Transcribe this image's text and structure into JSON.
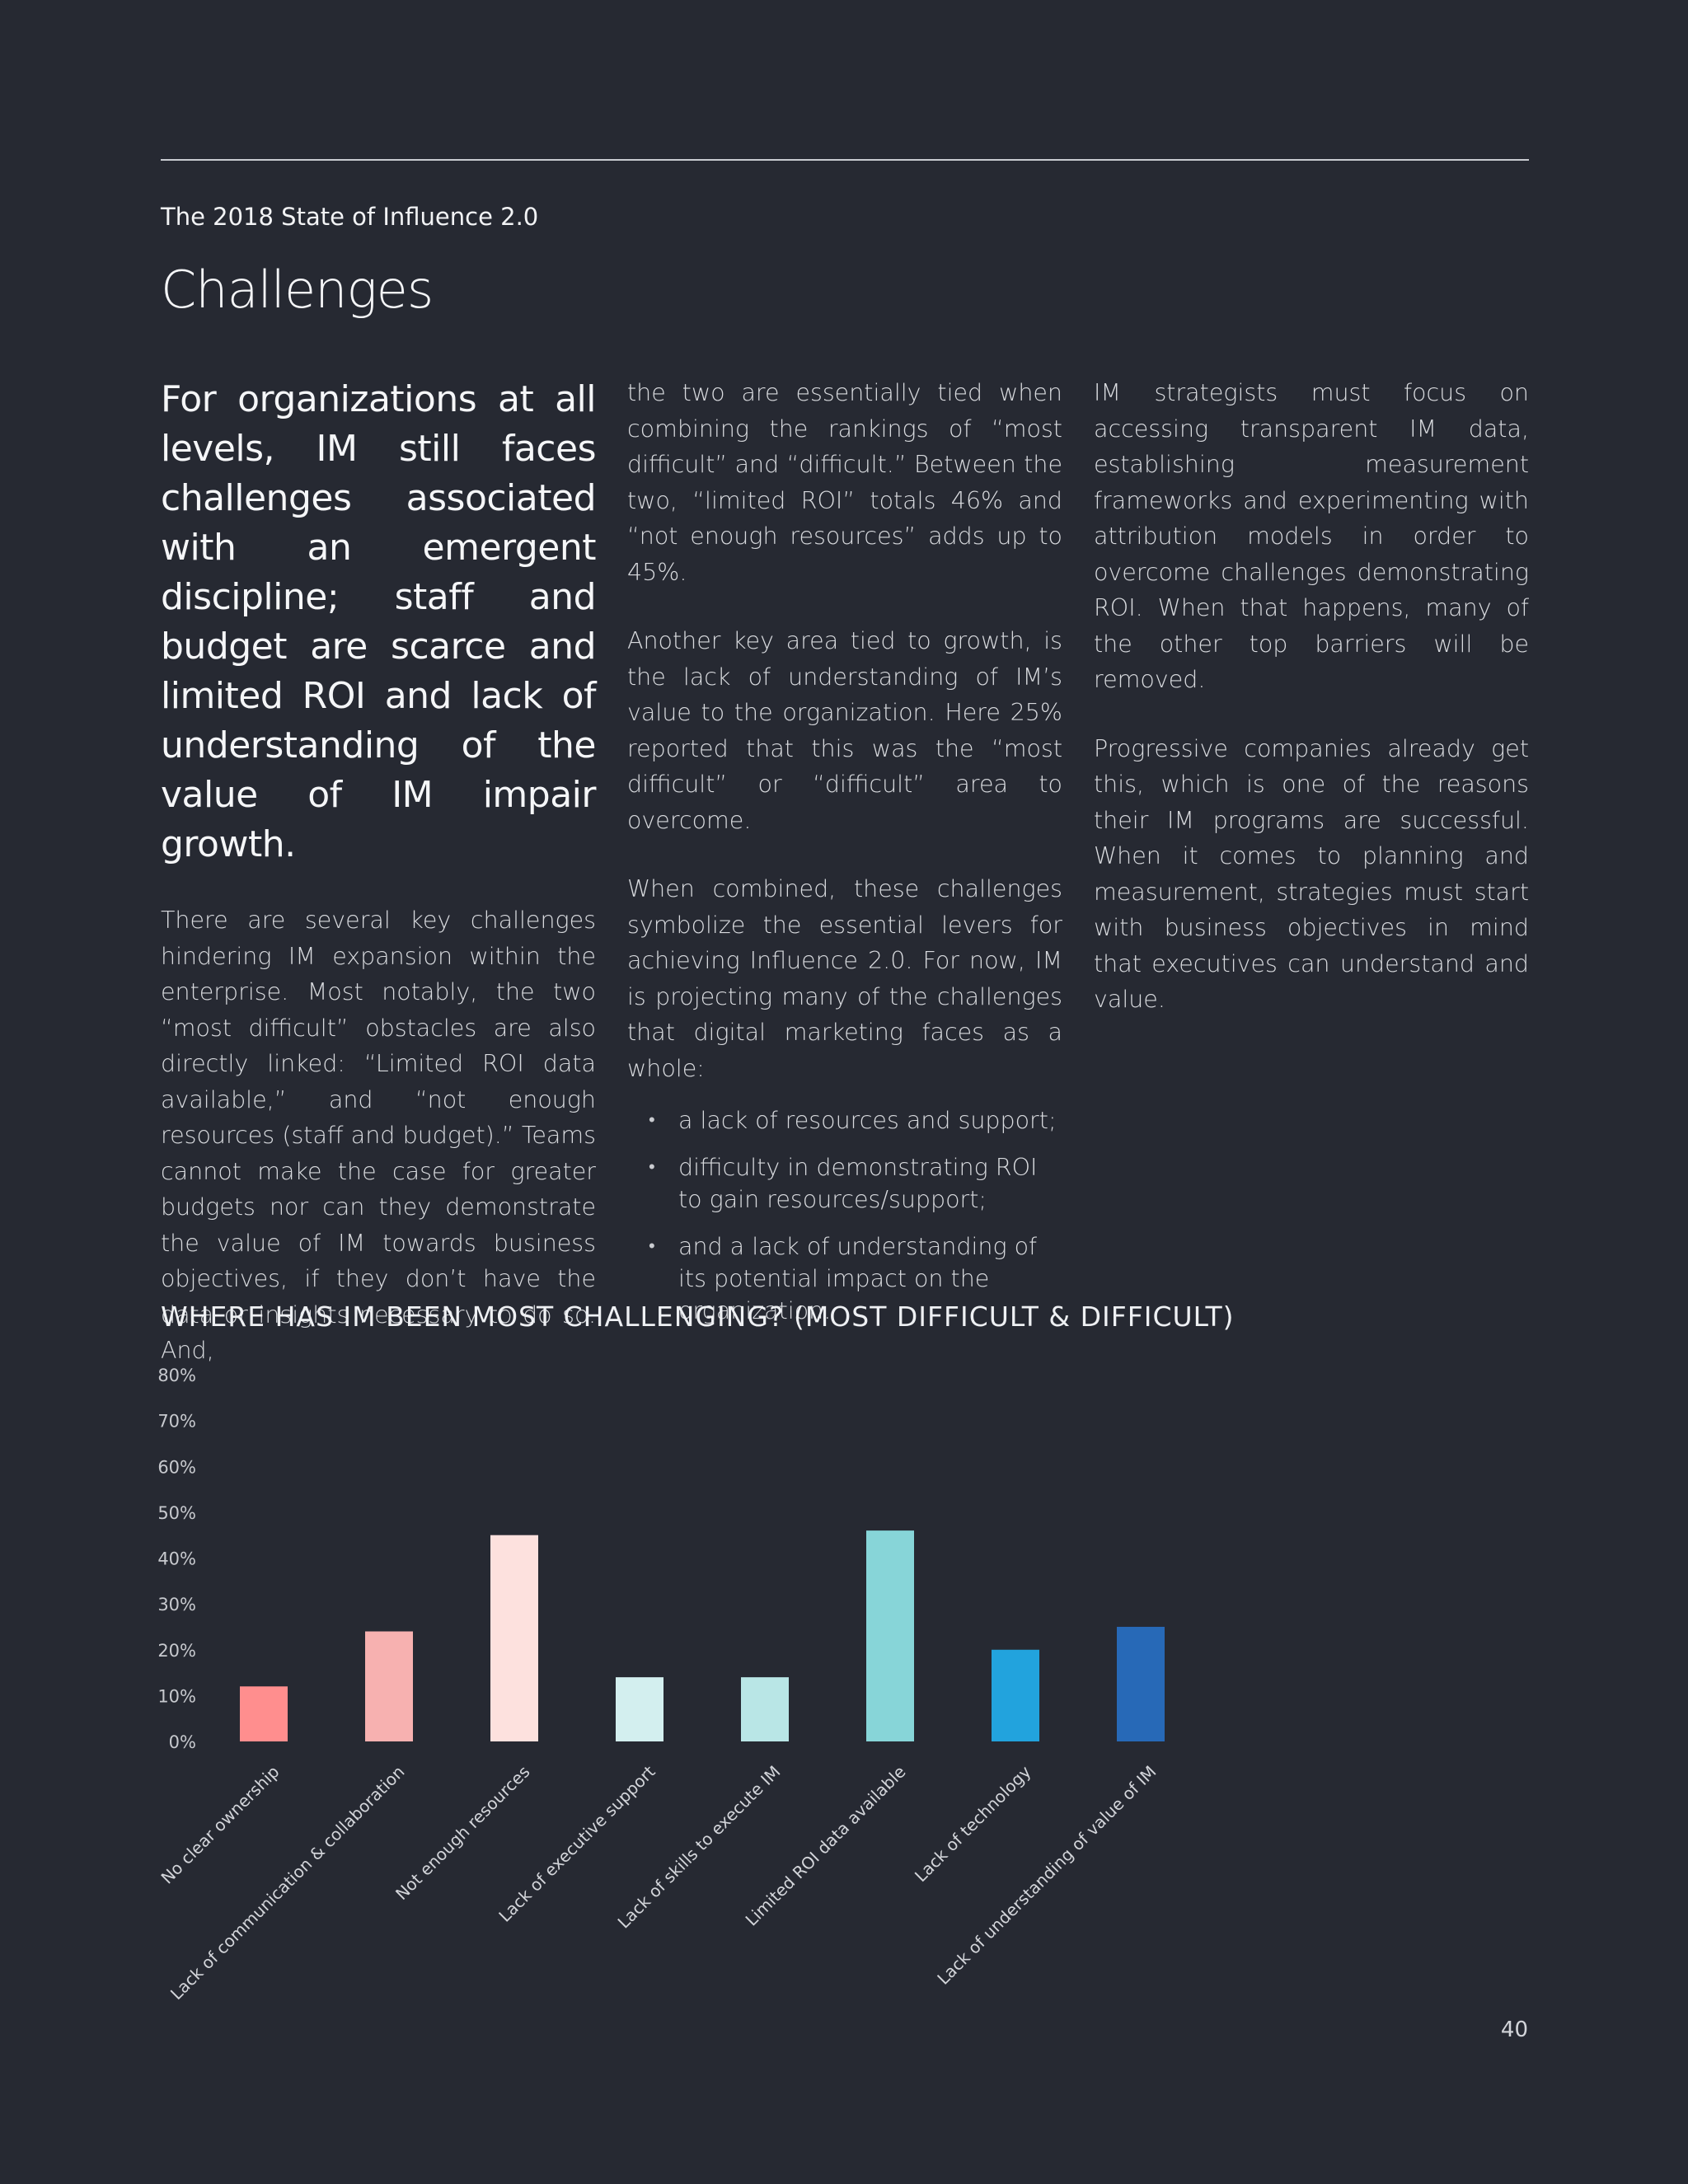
{
  "header": {
    "kicker": "The 2018 State of Influence 2.0",
    "title": "Challenges"
  },
  "column1": {
    "lead": "For organizations at all levels, IM still faces challenges associated with an emergent discipline; staff and budget are scarce and limited ROI and lack of understanding of the value of IM impair growth.",
    "p1": "There are several key challenges hindering IM expansion within the enterprise. Most notably, the two “most difficult” obstacles are also directly linked: “Limited ROI data available,” and “not enough resources (staff and budget).” Teams cannot make the case for greater budgets nor can they demonstrate the value of IM towards business objectives, if they don’t have the data or insights necessary to do so. And,"
  },
  "column2": {
    "p1": "the two are essentially tied when combining the rankings of “most difficult” and “difficult.” Between the two, “limited ROI” totals 46% and “not enough resources” adds up to 45%.",
    "p2": "Another key area tied to growth, is the lack of understanding of IM’s value to the organization. Here 25% reported that this was the “most difficult” or “difficult” area to overcome.",
    "p3": "When combined, these challenges symbolize the essential levers for achieving Influence 2.0. For now, IM is projecting many of the challenges that digital marketing faces as a whole:",
    "bullets": [
      "a lack of resources and support;",
      "difficulty in demonstrating ROI to gain resources/support;",
      "and a lack of understanding of its potential impact on the organization."
    ]
  },
  "column3": {
    "p1": "IM strategists must focus on accessing transparent IM data, establishing measurement frameworks and experimenting with attribution models in order to overcome challenges demonstrating ROI. When that happens, many of the other top barriers will be removed.",
    "p2": "Progressive companies already get this, which is one of the reasons their IM programs are successful. When it comes to planning and measurement, strategies must start with business objectives in mind that executives can understand and value."
  },
  "chart_data": {
    "type": "bar",
    "title": "WHERE HAS IM BEEN MOST CHALLENGING? (MOST DIFFICULT & DIFFICULT)",
    "categories": [
      "No clear ownership",
      "Lack of communication & collaboration",
      "Not enough resources",
      "Lack of executive support",
      "Lack of skills to execute IM",
      "Limited ROI data available",
      "Lack of technology",
      "Lack of understanding of value of IM"
    ],
    "values": [
      12,
      24,
      45,
      14,
      14,
      46,
      20,
      25
    ],
    "colors": [
      "#ff8e8e",
      "#f7b1b0",
      "#fde1de",
      "#d3efef",
      "#b9e6e6",
      "#87d5d8",
      "#22a3dd",
      "#2769b7"
    ],
    "yticks": [
      "0%",
      "10%",
      "20%",
      "30%",
      "40%",
      "50%",
      "60%",
      "70%",
      "80%"
    ],
    "ylim": [
      0,
      80
    ],
    "grid": false,
    "legend": "none"
  },
  "footer": {
    "page_number": "40"
  }
}
